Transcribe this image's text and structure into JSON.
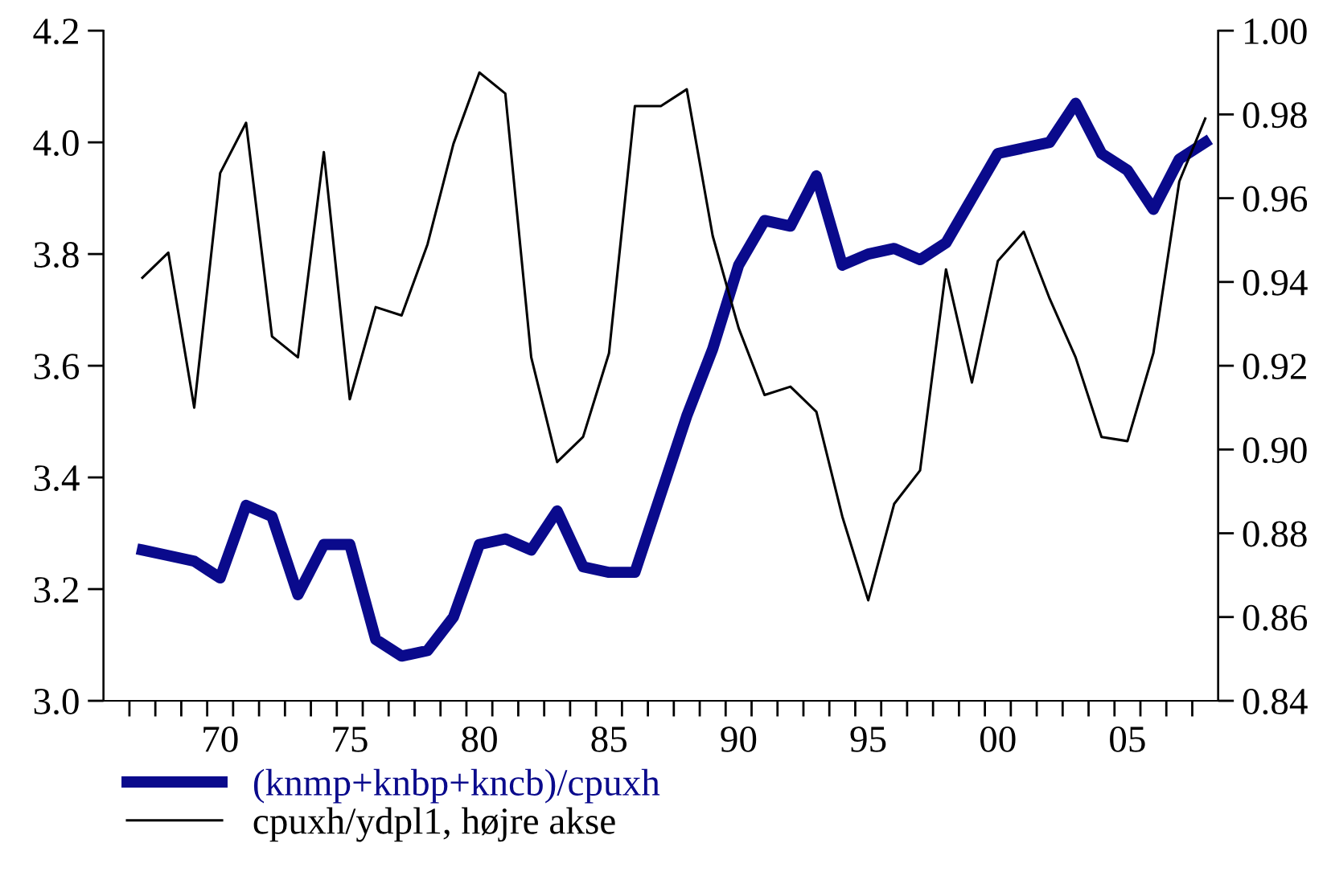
{
  "chart_data": {
    "type": "line",
    "categories": [
      null,
      null,
      null,
      "70",
      null,
      null,
      null,
      null,
      "75",
      null,
      null,
      null,
      null,
      "80",
      null,
      null,
      null,
      null,
      "85",
      null,
      null,
      null,
      null,
      "90",
      null,
      null,
      null,
      null,
      "95",
      null,
      null,
      null,
      null,
      "00",
      null,
      null,
      null,
      null,
      "05",
      null,
      null,
      null
    ],
    "series": [
      {
        "name": "(knmp+knbp+kncb)/cpuxh",
        "color": "#0a0a8c",
        "values": [
          3.27,
          3.26,
          3.25,
          3.22,
          3.35,
          3.33,
          3.19,
          3.28,
          3.28,
          3.11,
          3.08,
          3.09,
          3.15,
          3.28,
          3.29,
          3.27,
          3.34,
          3.24,
          3.23,
          3.23,
          3.37,
          3.51,
          3.63,
          3.78,
          3.86,
          3.85,
          3.94,
          3.78,
          3.8,
          3.81,
          3.79,
          3.82,
          3.9,
          3.98,
          3.99,
          4.0,
          4.07,
          3.98,
          3.95,
          3.88,
          3.97,
          4.0
        ]
      },
      {
        "name": "cpuxh/ydpl1, højre akse",
        "color": "#000000",
        "axis": "y2",
        "values": [
          0.941,
          0.947,
          0.91,
          0.966,
          0.978,
          0.927,
          0.922,
          0.971,
          0.912,
          0.934,
          0.932,
          0.949,
          0.973,
          0.99,
          0.985,
          0.922,
          0.897,
          0.903,
          0.923,
          0.982,
          0.982,
          0.986,
          0.951,
          0.929,
          0.913,
          0.915,
          0.909,
          0.884,
          0.864,
          0.887,
          0.895,
          0.943,
          0.916,
          0.945,
          0.952,
          0.936,
          0.922,
          0.903,
          0.902,
          0.923,
          0.964,
          0.979
        ]
      }
    ],
    "ylim": [
      3.0,
      4.2
    ],
    "yticks": [
      {
        "value": 3.0,
        "label": "3.0"
      },
      3.2,
      3.4,
      3.6,
      3.8,
      {
        "value": 4.0,
        "label": "4.0"
      },
      {
        "value": 4.2,
        "label": "4.2"
      }
    ],
    "y2lim": [
      0.84,
      1.0
    ],
    "y2ticks": [
      0.84,
      0.86,
      0.88,
      {
        "value": 0.9,
        "label": "0.90"
      },
      0.92,
      0.94,
      0.96,
      0.98,
      {
        "value": 1.0,
        "label": "1.00"
      }
    ],
    "legend": "bottom left",
    "grid": false,
    "marker": "none",
    "line_style": "solid"
  }
}
